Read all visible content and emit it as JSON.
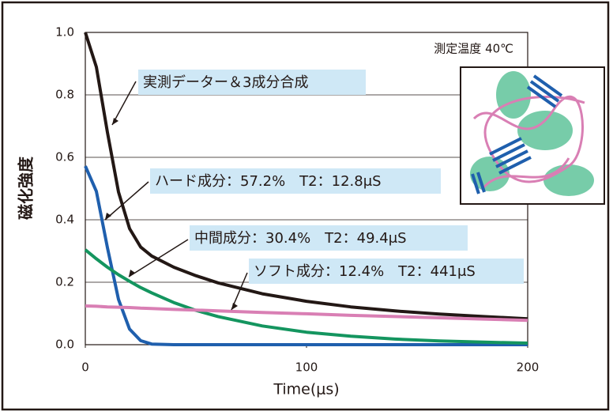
{
  "chart_data": {
    "type": "line",
    "x_label": "Time(μs)",
    "y_label": "磁化強度",
    "x": [
      0,
      5,
      10,
      15,
      20,
      25,
      30,
      40,
      50,
      60,
      80,
      100,
      120,
      140,
      160,
      180,
      200
    ],
    "series": [
      {
        "name": "実測データー＆3成分合成",
        "color": "#231815",
        "values": [
          1.0,
          0.889,
          0.68,
          0.489,
          0.372,
          0.313,
          0.284,
          0.248,
          0.221,
          0.198,
          0.163,
          0.139,
          0.121,
          0.108,
          0.098,
          0.09,
          0.083
        ]
      },
      {
        "name": "ハード成分：57.2%　T2：12.8μS",
        "color": "#1f5fad",
        "values": [
          0.572,
          0.491,
          0.311,
          0.145,
          0.05,
          0.013,
          0.002,
          0,
          0,
          0,
          0,
          0,
          0,
          0,
          0,
          0,
          0
        ]
      },
      {
        "name": "中間成分：30.4%　T2：49.4μS",
        "color": "#14955f",
        "values": [
          0.304,
          0.275,
          0.248,
          0.224,
          0.203,
          0.183,
          0.166,
          0.135,
          0.11,
          0.09,
          0.06,
          0.04,
          0.027,
          0.018,
          0.012,
          0.008,
          0.005
        ]
      },
      {
        "name": "ソフト成分：12.4%　T2：441μS",
        "color": "#d97fb4",
        "values": [
          0.124,
          0.123,
          0.121,
          0.12,
          0.119,
          0.117,
          0.116,
          0.113,
          0.111,
          0.108,
          0.103,
          0.099,
          0.094,
          0.09,
          0.086,
          0.082,
          0.078
        ]
      }
    ],
    "xlim": [
      0,
      200
    ],
    "xticks": [
      0,
      100,
      200
    ],
    "ylim": [
      0,
      1.0
    ],
    "yticks": [
      {
        "value": 0,
        "label": "0.0"
      },
      0.2,
      0.4,
      0.6,
      0.8,
      {
        "value": 1.0,
        "label": "1.0"
      }
    ],
    "grid": true,
    "annotation": "測定温度 40℃"
  }
}
